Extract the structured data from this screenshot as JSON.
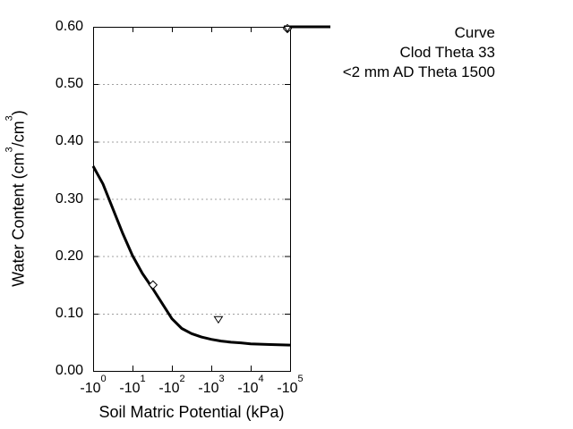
{
  "figure": {
    "background": "#ffffff",
    "axis_color": "#000000",
    "grid_color": "#a0a0a0",
    "curve_color": "#000000"
  },
  "axes": {
    "x": {
      "label": "Soil Matric Potential (kPa)",
      "ticks": [
        {
          "base": "-10",
          "exp": "0"
        },
        {
          "base": "-10",
          "exp": "1"
        },
        {
          "base": "-10",
          "exp": "2"
        },
        {
          "base": "-10",
          "exp": "3"
        },
        {
          "base": "-10",
          "exp": "4"
        },
        {
          "base": "-10",
          "exp": "5"
        }
      ]
    },
    "y": {
      "label_parts": [
        "Water Content (cm",
        {
          "sup": "3"
        },
        "/cm",
        {
          "sup": "3"
        },
        ")"
      ],
      "ticks": [
        {
          "label": "0.00",
          "value": 0.0
        },
        {
          "label": "0.10",
          "value": 0.1
        },
        {
          "label": "0.20",
          "value": 0.2
        },
        {
          "label": "0.30",
          "value": 0.3
        },
        {
          "label": "0.40",
          "value": 0.4
        },
        {
          "label": "0.50",
          "value": 0.5
        },
        {
          "label": "0.60",
          "value": 0.6
        }
      ]
    }
  },
  "legend": {
    "items": [
      {
        "label": "Curve",
        "marker": "line"
      },
      {
        "label": "Clod Theta 33",
        "marker": "diamond"
      },
      {
        "label": "<2 mm AD Theta 1500",
        "marker": "triangle-down"
      }
    ]
  },
  "chart_data": {
    "type": "line",
    "title": "",
    "xlabel": "Soil Matric Potential (kPa)",
    "ylabel": "Water Content (cm3/cm3)",
    "x_scale": "log10 of |kPa|, axis shows negative values -10^0 to -10^5",
    "xlim_log10": [
      0,
      5
    ],
    "ylim": [
      0,
      0.6
    ],
    "y_tick_step": 0.1,
    "grid": {
      "horizontal_dotted": true,
      "vertical": false
    },
    "legend_position": "outside top-right",
    "series": [
      {
        "name": "Curve",
        "type": "line",
        "color": "#000000",
        "points_log10kPa_theta": [
          [
            0.0,
            0.357
          ],
          [
            0.25,
            0.326
          ],
          [
            0.5,
            0.283
          ],
          [
            0.75,
            0.24
          ],
          [
            1.0,
            0.201
          ],
          [
            1.25,
            0.17
          ],
          [
            1.5,
            0.145
          ],
          [
            1.75,
            0.118
          ],
          [
            2.0,
            0.091
          ],
          [
            2.25,
            0.074
          ],
          [
            2.5,
            0.065
          ],
          [
            2.75,
            0.059
          ],
          [
            3.0,
            0.055
          ],
          [
            3.25,
            0.052
          ],
          [
            3.5,
            0.05
          ],
          [
            3.75,
            0.049
          ],
          [
            4.0,
            0.047
          ],
          [
            4.5,
            0.046
          ],
          [
            5.0,
            0.045
          ]
        ]
      },
      {
        "name": "Clod Theta 33",
        "type": "scatter",
        "marker": "open-diamond",
        "kPa": -33,
        "points_log10kPa_theta": [
          [
            1.52,
            0.15
          ]
        ]
      },
      {
        "name": "<2 mm AD Theta 1500",
        "type": "scatter",
        "marker": "open-triangle-down",
        "kPa": -1500,
        "points_log10kPa_theta": [
          [
            3.18,
            0.09
          ]
        ]
      }
    ]
  }
}
